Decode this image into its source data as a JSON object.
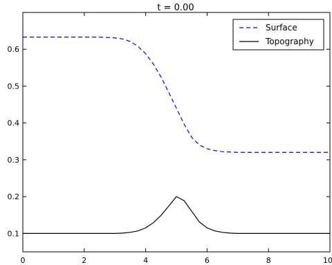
{
  "chart_data": {
    "type": "line",
    "title": "t = 0.00",
    "xlabel": "",
    "ylabel": "",
    "xlim": [
      0,
      10
    ],
    "ylim": [
      0.05,
      0.7
    ],
    "x_ticks": [
      0,
      2,
      4,
      6,
      8,
      10
    ],
    "y_ticks": [
      0.1,
      0.2,
      0.3,
      0.4,
      0.5,
      0.6
    ],
    "x_tick_labels": [
      "0",
      "2",
      "4",
      "6",
      "8",
      "10"
    ],
    "y_tick_labels": [
      "0.1",
      "0.2",
      "0.3",
      "0.4",
      "0.5",
      "0.6"
    ],
    "grid": false,
    "legend_position": "top-right",
    "x": [
      0,
      0.5,
      1,
      1.5,
      2,
      2.5,
      3,
      3.25,
      3.5,
      3.75,
      4,
      4.25,
      4.5,
      4.75,
      5,
      5.25,
      5.5,
      5.75,
      6,
      6.25,
      6.5,
      6.75,
      7,
      7.5,
      8,
      8.5,
      9,
      9.5,
      10
    ],
    "series": [
      {
        "name": "Surface",
        "color": "#0000ff",
        "dash": "dashed",
        "values": [
          0.633,
          0.633,
          0.633,
          0.633,
          0.633,
          0.633,
          0.631,
          0.628,
          0.621,
          0.608,
          0.588,
          0.56,
          0.525,
          0.483,
          0.44,
          0.397,
          0.361,
          0.34,
          0.33,
          0.325,
          0.322,
          0.321,
          0.32,
          0.32,
          0.32,
          0.32,
          0.32,
          0.32,
          0.32
        ]
      },
      {
        "name": "Topography",
        "color": "#000000",
        "dash": "solid",
        "values": [
          0.1,
          0.1,
          0.1,
          0.1,
          0.1,
          0.1,
          0.1,
          0.101,
          0.103,
          0.107,
          0.115,
          0.129,
          0.149,
          0.174,
          0.2,
          0.189,
          0.16,
          0.131,
          0.115,
          0.107,
          0.103,
          0.101,
          0.1,
          0.1,
          0.1,
          0.1,
          0.1,
          0.1,
          0.1
        ]
      }
    ]
  }
}
